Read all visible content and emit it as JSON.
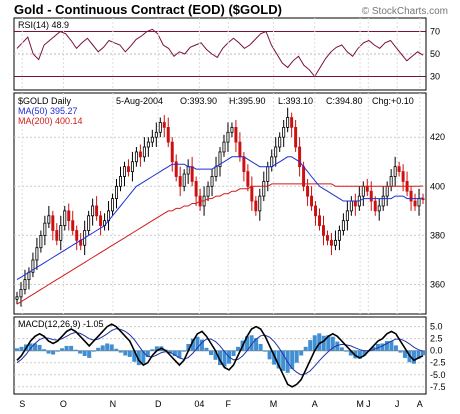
{
  "header": {
    "title": "Gold - Continuous Contract (EOD) ($GOLD)",
    "watermark": "© StockCharts.com"
  },
  "chart_data": [
    {
      "type": "line",
      "panel": "rsi",
      "label": "RSI(14) 48.9",
      "ylim": [
        18,
        82
      ],
      "yticks": [
        30,
        50,
        70
      ],
      "reference_lines": [
        30,
        70
      ],
      "line_color": "#7a1040",
      "values": [
        55,
        60,
        65,
        50,
        45,
        58,
        62,
        66,
        70,
        68,
        62,
        55,
        60,
        64,
        58,
        52,
        56,
        62,
        60,
        58,
        52,
        57,
        63,
        66,
        70,
        72,
        68,
        58,
        55,
        48,
        52,
        50,
        56,
        58,
        60,
        54,
        50,
        47,
        55,
        60,
        64,
        60,
        55,
        58,
        63,
        68,
        70,
        58,
        50,
        42,
        38,
        44,
        48,
        40,
        36,
        30,
        38,
        46,
        52,
        56,
        58,
        52,
        48,
        55,
        60,
        62,
        58,
        55,
        60,
        62,
        56,
        50,
        44,
        48,
        52,
        48.9
      ]
    },
    {
      "type": "candlestick",
      "panel": "price",
      "series_label": "$GOLD Daily",
      "info": {
        "date": "5-Aug-2004",
        "open_label": "O:393.90",
        "high_label": "H:395.90",
        "low_label": "L:393.10",
        "close_label": "C:394.80",
        "chg_label": "Chg:+0.10"
      },
      "ma_labels": [
        {
          "label": "MA(50) 395.27",
          "color": "#1c2fd6"
        },
        {
          "label": "MA(200) 400.14",
          "color": "#d41b1b"
        }
      ],
      "ylim": [
        348,
        438
      ],
      "yticks": [
        360,
        380,
        400,
        420
      ],
      "x_labels": [
        "S",
        "O",
        "N",
        "D",
        "04",
        "F",
        "M",
        "A",
        "M",
        "J",
        "J",
        "A"
      ],
      "x_label_positions": [
        0.02,
        0.12,
        0.24,
        0.35,
        0.45,
        0.52,
        0.63,
        0.73,
        0.84,
        0.86,
        0.93,
        0.985
      ],
      "close": [
        355,
        358,
        362,
        365,
        370,
        375,
        380,
        385,
        388,
        382,
        378,
        384,
        390,
        386,
        382,
        378,
        376,
        382,
        388,
        392,
        388,
        384,
        386,
        390,
        395,
        400,
        404,
        408,
        406,
        410,
        414,
        412,
        416,
        418,
        420,
        422,
        426,
        424,
        418,
        410,
        404,
        400,
        405,
        408,
        402,
        396,
        392,
        396,
        400,
        404,
        408,
        414,
        418,
        422,
        424,
        418,
        412,
        406,
        400,
        394,
        390,
        396,
        402,
        408,
        412,
        416,
        420,
        424,
        428,
        424,
        416,
        408,
        400,
        396,
        392,
        388,
        384,
        380,
        378,
        376,
        378,
        382,
        386,
        390,
        394,
        392,
        396,
        400,
        398,
        394,
        390,
        392,
        396,
        400,
        404,
        408,
        406,
        402,
        398,
        394,
        392,
        395,
        394.8
      ],
      "ma50": [
        362,
        363,
        364,
        365,
        366,
        367,
        368,
        369,
        370,
        371,
        372,
        373,
        374,
        375,
        376,
        377,
        378,
        379,
        380,
        381,
        382,
        383,
        384,
        386,
        388,
        390,
        392,
        394,
        396,
        398,
        400,
        401,
        402,
        403,
        404,
        405,
        406,
        407,
        408,
        409,
        409,
        409,
        409,
        408,
        408,
        407,
        407,
        407,
        407,
        407,
        408,
        409,
        410,
        411,
        412,
        412,
        412,
        412,
        411,
        410,
        409,
        408,
        408,
        408,
        408,
        409,
        410,
        411,
        412,
        412,
        411,
        410,
        408,
        406,
        404,
        402,
        400,
        399,
        398,
        397,
        396,
        395,
        394,
        394,
        394,
        394,
        394,
        395,
        395,
        395,
        395,
        395,
        395,
        395,
        395,
        396,
        396,
        396,
        395,
        395,
        395,
        395,
        395.27
      ],
      "ma200": [
        352,
        353,
        354,
        355,
        356,
        357,
        358,
        359,
        360,
        361,
        362,
        363,
        364,
        365,
        366,
        367,
        368,
        369,
        370,
        371,
        372,
        373,
        374,
        375,
        376,
        377,
        378,
        379,
        380,
        381,
        382,
        383,
        384,
        385,
        386,
        387,
        388,
        389,
        390,
        390,
        391,
        391,
        392,
        392,
        393,
        393,
        394,
        394,
        395,
        395,
        396,
        396,
        397,
        397,
        398,
        398,
        399,
        399,
        399,
        400,
        400,
        400,
        400,
        400,
        401,
        401,
        401,
        401,
        401,
        401,
        401,
        401,
        401,
        401,
        401,
        401,
        401,
        401,
        401,
        401,
        400,
        400,
        400,
        400,
        400,
        400,
        400,
        400,
        400,
        400,
        400,
        400,
        400,
        400,
        400,
        400,
        400,
        400,
        400,
        400,
        400,
        400,
        400.14
      ]
    },
    {
      "type": "line",
      "panel": "macd",
      "label": "MACD(12,26,9) -1.05",
      "ylim": [
        -9,
        7
      ],
      "yticks": [
        5.0,
        2.5,
        0.0,
        -2.5,
        -5.0,
        -7.5
      ],
      "tick_labels": [
        "5.0",
        "2.5",
        "0.0",
        "-2.5",
        "-5.0",
        "-7.5"
      ],
      "macd": [
        -2,
        -1,
        0.5,
        2,
        3,
        3.5,
        3,
        2,
        1.5,
        2,
        3,
        4,
        4.5,
        4,
        3,
        2,
        1,
        2,
        3,
        4,
        5,
        5.5,
        5,
        4,
        3,
        2,
        0,
        -2,
        -3,
        -2.5,
        -1,
        0,
        0.5,
        0,
        -1,
        -2,
        -3,
        -2,
        0,
        2,
        3.5,
        4,
        3,
        1.5,
        0,
        -2,
        -3.5,
        -4,
        -3,
        -1,
        1,
        3,
        4.5,
        5,
        4.5,
        3,
        1,
        -1,
        -3,
        -5,
        -7,
        -7.5,
        -7,
        -6,
        -4,
        -2,
        0,
        1.5,
        2,
        3,
        3.5,
        3,
        2,
        1,
        0,
        -1,
        -1.5,
        -1,
        0,
        1,
        2,
        2.5,
        3.5,
        4,
        3.5,
        2,
        0.5,
        -1,
        -2,
        -1.5,
        -1.05
      ],
      "signal": [
        -2.5,
        -1.8,
        -0.8,
        0.5,
        1.5,
        2.3,
        2.7,
        2.6,
        2.3,
        2.2,
        2.5,
        3,
        3.5,
        3.8,
        3.6,
        3.1,
        2.5,
        2.2,
        2.4,
        2.9,
        3.5,
        4.2,
        4.6,
        4.4,
        4,
        3.3,
        2.3,
        1,
        -0.3,
        -1.2,
        -1.3,
        -0.9,
        -0.4,
        -0.2,
        -0.4,
        -0.9,
        -1.5,
        -1.8,
        -1.4,
        -0.5,
        0.6,
        1.7,
        2.4,
        2.4,
        1.9,
        1,
        -0.2,
        -1.3,
        -1.9,
        -1.8,
        -1.1,
        0,
        1.3,
        2.4,
        3.1,
        3.2,
        2.8,
        1.9,
        0.7,
        -0.8,
        -2.4,
        -3.7,
        -4.5,
        -5,
        -4.8,
        -4.2,
        -3.2,
        -2.1,
        -1.1,
        -0.2,
        0.6,
        1.1,
        1.3,
        1.2,
        1,
        0.6,
        0.2,
        0,
        0,
        0.2,
        0.6,
        1,
        1.5,
        2,
        2.4,
        2.4,
        2,
        1.4,
        0.7,
        0.2,
        -0.1
      ],
      "hist_color": "#3f8fd2"
    }
  ]
}
